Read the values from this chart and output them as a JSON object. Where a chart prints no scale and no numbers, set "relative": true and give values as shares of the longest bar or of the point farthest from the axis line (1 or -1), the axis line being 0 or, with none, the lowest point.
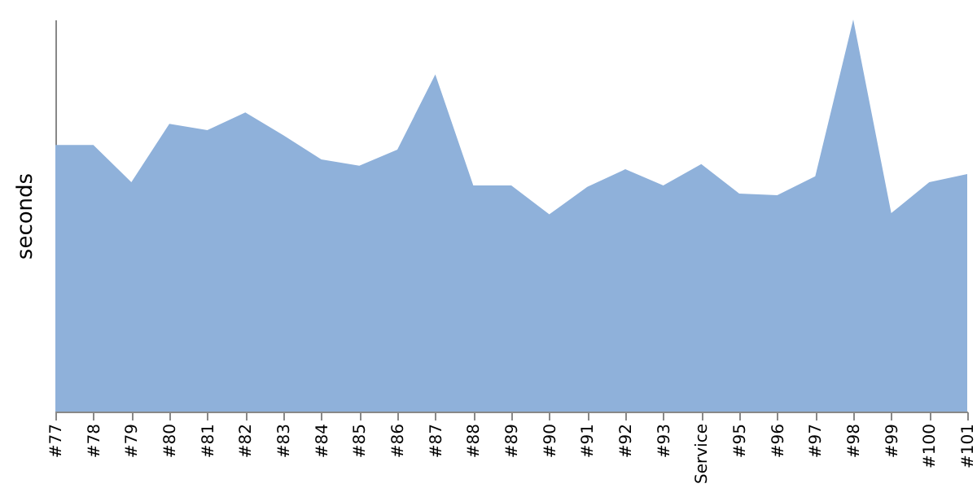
{
  "chart_data": {
    "type": "area",
    "ylabel": "seconds",
    "relative": true,
    "grid": false,
    "categories": [
      "#77",
      "#78",
      "#79",
      "#80",
      "#81",
      "#82",
      "#83",
      "#84",
      "#85",
      "#86",
      "#87",
      "#88",
      "#89",
      "#90",
      "#91",
      "#92",
      "#93",
      "Service",
      "#95",
      "#96",
      "#97",
      "#98",
      "#99",
      "#100",
      "#101"
    ],
    "series": [
      {
        "color": "#8fb1da",
        "values": [
          0.68,
          0.68,
          0.585,
          0.734,
          0.718,
          0.763,
          0.705,
          0.643,
          0.627,
          0.668,
          0.86,
          0.577,
          0.577,
          0.503,
          0.573,
          0.618,
          0.577,
          0.631,
          0.556,
          0.552,
          0.6,
          1,
          0.506,
          0.585,
          0.606
        ]
      }
    ]
  }
}
